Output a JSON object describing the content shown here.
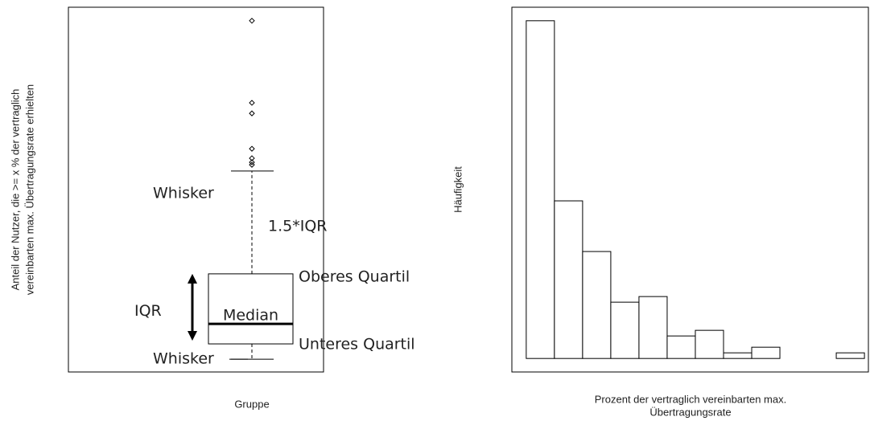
{
  "chart_data": [
    {
      "type": "box",
      "ylabel": [
        "Anteil der Nutzer, die >= x % der vertraglich",
        "vereinbarten max. Übertragungsrate erhielten"
      ],
      "xlabel": "Gruppe",
      "ylim": [
        0,
        100
      ],
      "whisker_low": 3.5,
      "q1": 7.7,
      "median": 13.2,
      "q3": 26.9,
      "whisker_high": 55.1,
      "outliers": [
        96.3,
        73.8,
        70.9,
        61.2,
        58.6,
        57.5,
        56.8
      ],
      "annotations": {
        "upper_whisker": "Whisker",
        "range": "1.5*IQR",
        "q3": "Oberes Quartil",
        "iqr": "IQR",
        "median": "Median",
        "q1": "Unteres Quartil",
        "lower_whisker": "Whisker"
      },
      "color": "#000000"
    },
    {
      "type": "histogram",
      "ylabel": "Häufigkeit",
      "xlabel": [
        "Prozent der vertraglich vereinbarten max.",
        "Übertragungsrate"
      ],
      "bins": [
        0,
        10,
        20,
        30,
        40,
        50,
        60,
        70,
        80,
        90,
        100,
        110,
        120
      ],
      "counts": [
        60,
        28,
        19,
        10,
        11,
        4,
        5,
        1,
        2,
        0,
        0,
        1
      ],
      "xlim": [
        -5.1,
        121.4
      ],
      "ylim": [
        -2.4,
        62.4
      ],
      "color": "#ffffff"
    }
  ]
}
